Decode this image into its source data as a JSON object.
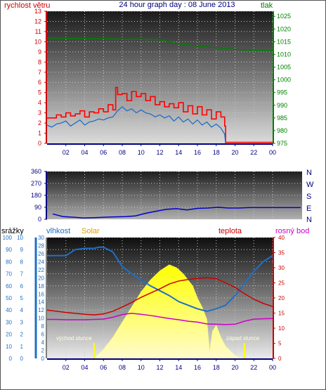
{
  "colors": {
    "wind": "#ff0000",
    "wind_avg": "#1e6fc8",
    "pressure": "#008000",
    "direction": "#0000cc",
    "humidity": "#1e6fc8",
    "temperature": "#cc0000",
    "dewpoint": "#cc00cc",
    "solar": "#ffff00",
    "rain": "#1e6fc8",
    "hour_axis": "#000080"
  },
  "chart_data": [
    {
      "type": "line",
      "title": "24 hour graph day : 08 June 2013",
      "left_axis_label": "rychlost větru",
      "right_axis_label": "tlak",
      "x_ticks": [
        "02",
        "04",
        "06",
        "08",
        "10",
        "12",
        "14",
        "16",
        "18",
        "20",
        "22",
        "00"
      ],
      "left_ticks": [
        0,
        1,
        2,
        3,
        4,
        5,
        6,
        7,
        8,
        9,
        10,
        11,
        12,
        13
      ],
      "right_ticks": [
        975,
        980,
        985,
        990,
        995,
        1000,
        1005,
        1010,
        1015,
        1020,
        1025
      ],
      "left_range": [
        0,
        13
      ],
      "right_range": [
        975,
        1027
      ],
      "x_range": [
        0,
        24
      ],
      "series": [
        {
          "name": "gust",
          "axis": "left",
          "x": [
            0,
            0.5,
            1,
            1.5,
            2,
            2.5,
            3,
            3.5,
            4,
            4.5,
            5,
            5.5,
            6,
            6.5,
            7,
            7.3,
            7.5,
            8,
            8.5,
            9,
            9.5,
            10,
            10.5,
            11,
            11.5,
            12,
            12.5,
            13,
            13.5,
            14,
            14.5,
            15,
            15.5,
            16,
            16.5,
            17,
            17.5,
            18,
            18.5,
            18.9,
            19,
            20,
            21,
            22,
            23,
            24
          ],
          "y": [
            2.5,
            2.5,
            2.8,
            2.6,
            3,
            2.7,
            2.9,
            3.2,
            2.6,
            3.1,
            3,
            3.4,
            3.1,
            3.8,
            3.3,
            5.5,
            4.8,
            4.9,
            4.2,
            5.1,
            4.6,
            4.9,
            4.2,
            4.6,
            3.8,
            4.1,
            3.6,
            3.9,
            3.5,
            4,
            3.1,
            3.7,
            2.9,
            3.6,
            2.8,
            3.3,
            2.4,
            3.1,
            2.6,
            1.7,
            0.1,
            0.1,
            0.1,
            0.1,
            0.1,
            0.1
          ]
        },
        {
          "name": "avg",
          "axis": "left",
          "x": [
            0,
            0.5,
            1,
            1.5,
            2,
            2.5,
            3,
            3.5,
            4,
            4.5,
            5,
            5.5,
            6,
            6.5,
            7,
            7.5,
            8,
            8.5,
            9,
            9.5,
            10,
            10.5,
            11,
            11.5,
            12,
            12.5,
            13,
            13.5,
            14,
            14.5,
            15,
            15.5,
            16,
            16.5,
            17,
            17.5,
            18,
            18.5,
            18.9,
            19
          ],
          "y": [
            1.8,
            1.6,
            1.9,
            2,
            2.2,
            1.7,
            2,
            2.3,
            1.8,
            2.1,
            2.2,
            2.4,
            2.3,
            2.5,
            2.6,
            3.2,
            3.6,
            3.2,
            3.4,
            3,
            3.3,
            3,
            2.9,
            2.6,
            2.8,
            2.5,
            2.7,
            2.2,
            2.6,
            2.1,
            2.4,
            1.9,
            2.3,
            1.8,
            2.1,
            1.6,
            1.9,
            1.5,
            0.9,
            0
          ]
        },
        {
          "name": "pressure",
          "axis": "right",
          "x": [
            0,
            2,
            4,
            6,
            8,
            10,
            12,
            13,
            14,
            16,
            18,
            20,
            22,
            24
          ],
          "y": [
            1016.5,
            1016.3,
            1016.2,
            1016.2,
            1016,
            1016,
            1015.8,
            1015,
            1014.2,
            1013.3,
            1012.6,
            1012,
            1011.6,
            1011.4
          ]
        }
      ]
    },
    {
      "type": "scatter",
      "right_axis_letters": [
        "N",
        "W",
        "S",
        "E",
        "N"
      ],
      "left_ticks": [
        0,
        90,
        180,
        270,
        360
      ],
      "y_range": [
        0,
        360
      ],
      "x_range": [
        0,
        24
      ],
      "series": [
        {
          "name": "direction",
          "x": [
            0,
            1,
            2,
            3,
            4,
            5,
            6,
            7,
            8,
            9,
            10,
            11,
            12,
            13,
            14,
            15,
            16,
            17,
            18,
            19,
            20,
            21,
            22,
            23,
            24
          ],
          "y": [
            40,
            20,
            15,
            10,
            12,
            15,
            18,
            20,
            25,
            45,
            60,
            75,
            80,
            70,
            82,
            85,
            90,
            85,
            85,
            88,
            88,
            88,
            88,
            88,
            88
          ]
        }
      ]
    },
    {
      "type": "line",
      "left_axis_label_rain": "srážky",
      "left_axis_label_humidity": "vlhkost",
      "left_axis_label_solar": "Solar",
      "right_axis_label_temp": "teplota",
      "right_axis_label_dew": "rosný bod",
      "sunrise_label": "východ slunce",
      "sunset_label": "západ slunce",
      "rain_ticks": [
        0,
        1,
        2,
        3,
        4,
        5,
        6,
        7,
        8,
        9,
        10
      ],
      "humidity_ticks": [
        0,
        10,
        20,
        30,
        40,
        50,
        60,
        70,
        80,
        90,
        100
      ],
      "solar_ticks": [
        0,
        2,
        4,
        6,
        8,
        10,
        12,
        14,
        16,
        18,
        20,
        22,
        24,
        26,
        28,
        30
      ],
      "temp_ticks": [
        0,
        5,
        10,
        15,
        20,
        25,
        30,
        35,
        40
      ],
      "x_ticks": [
        "02",
        "04",
        "06",
        "08",
        "10",
        "12",
        "14",
        "16",
        "18",
        "20",
        "22",
        "00"
      ],
      "temp_range": [
        0,
        40
      ],
      "humidity_range": [
        0,
        100
      ],
      "x_range": [
        0,
        24
      ],
      "sunrise_hour": 5,
      "sunset_hour": 21,
      "series": [
        {
          "name": "humidity",
          "axis": "humidity",
          "x": [
            0,
            1,
            2,
            3,
            4,
            5,
            5.5,
            6,
            7,
            8,
            9,
            10,
            11,
            12,
            13,
            14,
            15,
            16,
            17,
            17.5,
            18,
            19,
            20,
            21,
            22,
            23,
            24
          ],
          "y": [
            85,
            85,
            85,
            90,
            91,
            91,
            92,
            92,
            88,
            76,
            70,
            65,
            60,
            56,
            52,
            47,
            44,
            41,
            39,
            40,
            41,
            44,
            52,
            62,
            72,
            80,
            85
          ]
        },
        {
          "name": "temperature",
          "axis": "temp",
          "x": [
            0,
            1,
            2,
            3,
            4,
            5,
            6,
            7,
            8,
            9,
            10,
            11,
            12,
            13,
            14,
            15,
            16,
            17,
            17.5,
            18,
            19,
            20,
            21,
            22,
            23,
            24
          ],
          "y": [
            16,
            15.6,
            15.2,
            14.9,
            14.6,
            14.4,
            14.7,
            15.6,
            17,
            18.5,
            20.2,
            21.6,
            23,
            24.6,
            25.6,
            26.1,
            26.5,
            26.7,
            26.5,
            26.4,
            25,
            23.5,
            21.4,
            19.6,
            18.2,
            17.2
          ]
        },
        {
          "name": "dewpoint",
          "axis": "temp",
          "x": [
            0,
            1,
            2,
            3,
            4,
            5,
            6,
            7,
            8,
            9,
            10,
            11,
            12,
            13,
            14,
            15,
            16,
            17,
            18,
            19,
            20,
            21,
            22,
            23,
            24
          ],
          "y": [
            12.9,
            12.9,
            12.8,
            12.8,
            12.8,
            12.9,
            13,
            13.6,
            14.5,
            14.9,
            14.6,
            14.2,
            13.7,
            13.2,
            12.8,
            12.3,
            12,
            11.4,
            11.3,
            11.2,
            11.3,
            12.3,
            13,
            13.1,
            13.2
          ]
        },
        {
          "name": "solar",
          "axis": "temp",
          "x": [
            5,
            6,
            7,
            8,
            9,
            10,
            11,
            12,
            13,
            13.8,
            14.5,
            15,
            15.5,
            16,
            16.5,
            17,
            17.3,
            17.6,
            18,
            18.5,
            19,
            20,
            20.8
          ],
          "y": [
            0,
            3,
            7,
            12,
            17,
            22,
            26,
            29,
            31,
            30,
            28,
            26,
            24,
            20,
            17,
            13,
            2,
            9,
            11,
            7,
            4,
            1,
            0
          ]
        }
      ]
    }
  ]
}
